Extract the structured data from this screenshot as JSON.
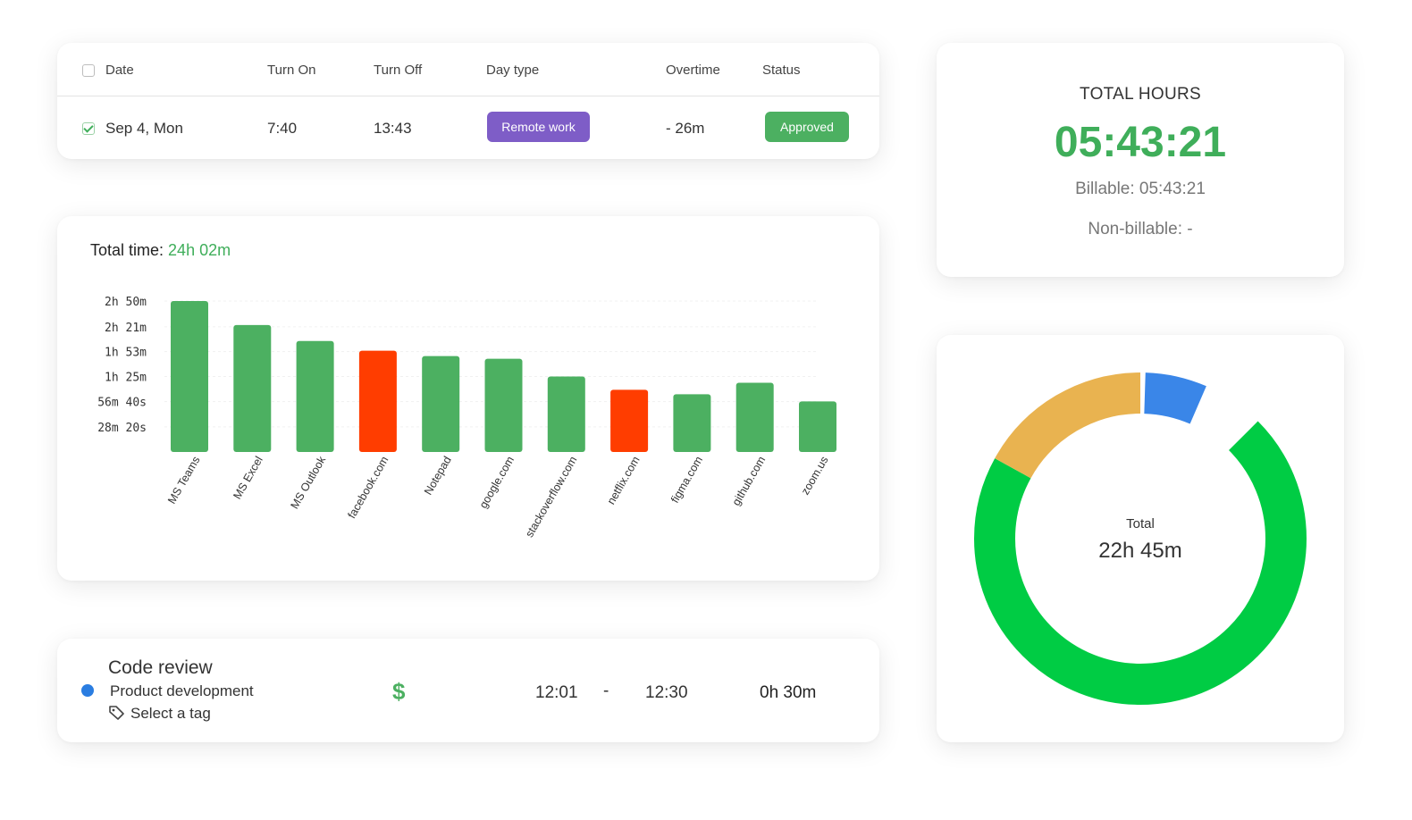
{
  "attendance": {
    "headers": [
      "Date",
      "Turn On",
      "Turn Off",
      "Day type",
      "Overtime",
      "Status"
    ],
    "row": {
      "date": "Sep 4, Mon",
      "turn_on": "7:40",
      "turn_off": "13:43",
      "day_type": "Remote work",
      "overtime": "- 26m",
      "status": "Approved",
      "checked": true
    },
    "colors": {
      "day_type_pill": "#7e5dc7",
      "status_pill": "#4cb061",
      "date_link": "#2f86d4"
    }
  },
  "usage": {
    "title_label": "Total time:",
    "title_value": "24h 02m"
  },
  "chart_data": {
    "type": "bar",
    "title": "Total time: 24h 02m",
    "categories": [
      "MS Teams",
      "MS Excel",
      "MS Outlook",
      "facebook.com",
      "Notepad",
      "google.com",
      "stackoverflow.com",
      "netflix.com",
      "figma.com",
      "github.com",
      "zoom.us"
    ],
    "values_minutes": [
      170,
      143,
      125,
      114,
      108,
      105,
      85,
      70,
      65,
      78,
      57
    ],
    "y_ticks": [
      "2h 50m",
      "2h 21m",
      "1h 53m",
      "1h 25m",
      "56m 40s",
      "28m 20s"
    ],
    "y_tick_minutes": [
      170,
      141,
      113,
      85,
      56.67,
      28.33
    ],
    "ylim_minutes": [
      0,
      170
    ],
    "bar_colors": [
      "#4cb061",
      "#4cb061",
      "#4cb061",
      "#ff3d00",
      "#4cb061",
      "#4cb061",
      "#4cb061",
      "#ff3d00",
      "#4cb061",
      "#4cb061",
      "#4cb061"
    ],
    "grid": true,
    "legend": "none"
  },
  "time_entry": {
    "task": "Code review",
    "project": "Product development",
    "tag_placeholder": "Select a tag",
    "billable_symbol": "$",
    "start": "12:01",
    "separator": "-",
    "end": "12:30",
    "duration": "0h 30m",
    "project_color": "#2a7de1"
  },
  "total_hours": {
    "label": "TOTAL HOURS",
    "value": "05:43:21",
    "billable": "Billable: 05:43:21",
    "non_billable": "Non-billable: -"
  },
  "donut": {
    "center_label": "Total",
    "center_value": "22h 45m",
    "segments": [
      {
        "value": 0.705,
        "color": "#00cc44"
      },
      {
        "value": 0.235,
        "color": "#e9b350"
      },
      {
        "value": 0.06,
        "color": "#3a86e8"
      }
    ]
  }
}
